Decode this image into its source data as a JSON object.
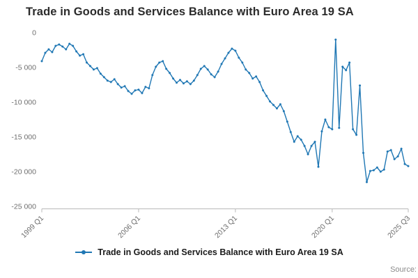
{
  "title": "Trade in Goods and Services Balance with Euro Area 19 SA",
  "legend_label": "Trade in Goods and Services Balance with Euro Area 19 SA",
  "source_label": "Source:",
  "chart_data": {
    "type": "line",
    "title": "Trade in Goods and Services Balance with Euro Area 19 SA",
    "x_unit": "quarter",
    "x_start": "1999 Q1",
    "x_end": "2025 Q3",
    "ylim": [
      -25000,
      0
    ],
    "grid": false,
    "legend_position": "bottom",
    "line_color": "#1f77b4",
    "axis_color": "#b8b8b8",
    "tick_label_color": "#6e6e6e",
    "y_ticks": [
      {
        "label": "0",
        "value": 0
      },
      {
        "label": "-5 000",
        "value": -5000
      },
      {
        "label": "-10 000",
        "value": -10000
      },
      {
        "label": "-15 000",
        "value": -15000
      },
      {
        "label": "-20 000",
        "value": -20000
      },
      {
        "label": "-25 000",
        "value": -25000
      }
    ],
    "x_ticks": [
      {
        "label": "1999 Q1",
        "index": 0
      },
      {
        "label": "2006 Q1",
        "index": 28
      },
      {
        "label": "2013 Q1",
        "index": 56
      },
      {
        "label": "2020 Q1",
        "index": 84
      },
      {
        "label": "2025 Q3",
        "index": 106
      }
    ],
    "series": [
      {
        "name": "Trade in Goods and Services Balance with Euro Area 19 SA",
        "values": [
          -4100,
          -2900,
          -2400,
          -2800,
          -1900,
          -1700,
          -2000,
          -2400,
          -1600,
          -1900,
          -2700,
          -3300,
          -3100,
          -4300,
          -4800,
          -5300,
          -5100,
          -5900,
          -6400,
          -6900,
          -7100,
          -6700,
          -7400,
          -7900,
          -7700,
          -8400,
          -8800,
          -8300,
          -8200,
          -8700,
          -7800,
          -8000,
          -6100,
          -4900,
          -4300,
          -4100,
          -5200,
          -5800,
          -6600,
          -7200,
          -6800,
          -7300,
          -7000,
          -7400,
          -6900,
          -6100,
          -5200,
          -4800,
          -5300,
          -6000,
          -6400,
          -5600,
          -4500,
          -3700,
          -2900,
          -2300,
          -2600,
          -3600,
          -4300,
          -5300,
          -5800,
          -6600,
          -6300,
          -7100,
          -8300,
          -9100,
          -9900,
          -10400,
          -10900,
          -10300,
          -11300,
          -12800,
          -14300,
          -15700,
          -14900,
          -15400,
          -16300,
          -17500,
          -16300,
          -15700,
          -19300,
          -14200,
          -12500,
          -13600,
          -13900,
          -1000,
          -13700,
          -4900,
          -5400,
          -4300,
          -13900,
          -14700,
          -7600,
          -17300,
          -21500,
          -19900,
          -19800,
          -19400,
          -20000,
          -19700,
          -17100,
          -16900,
          -18200,
          -17800,
          -16700,
          -18900,
          -19200
        ]
      }
    ]
  }
}
